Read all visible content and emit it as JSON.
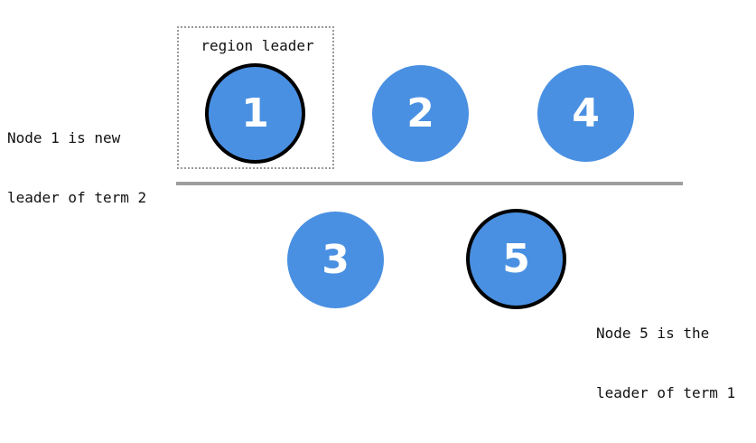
{
  "notes": {
    "left": [
      "Node 1 is new",
      "leader of term 2"
    ],
    "right": [
      "Node 5 is the",
      "leader of term 1"
    ]
  },
  "region": {
    "label": "region leader"
  },
  "colors": {
    "node_fill": "#4a90e2",
    "leader_border": "#000000",
    "partition_line": "#9e9e9e",
    "region_border": "#9a9a9a"
  },
  "nodes": [
    {
      "id": "1",
      "label": "1",
      "leader": true
    },
    {
      "id": "2",
      "label": "2",
      "leader": false
    },
    {
      "id": "4",
      "label": "4",
      "leader": false
    },
    {
      "id": "3",
      "label": "3",
      "leader": false
    },
    {
      "id": "5",
      "label": "5",
      "leader": true
    }
  ]
}
